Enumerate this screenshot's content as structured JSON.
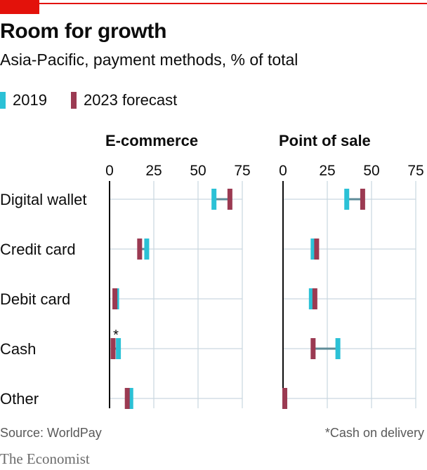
{
  "header": {
    "title": "Room for growth",
    "subtitle": "Asia-Pacific, payment methods, % of total"
  },
  "legend": [
    {
      "label": "2019",
      "color": "#2bc1d6"
    },
    {
      "label": "2023 forecast",
      "color": "#9b3a52"
    }
  ],
  "colors": {
    "connector": "#5f8c99",
    "grid": "#c9d7e0",
    "axis": "#0c0c0c",
    "brand_red": "#e3120b"
  },
  "chart_data": [
    {
      "type": "dumbbell",
      "title": "E-commerce",
      "xlim": [
        0,
        75
      ],
      "xticks": [
        0,
        25,
        50,
        75
      ],
      "categories": [
        "Digital wallet",
        "Credit card",
        "Debit card",
        "Cash",
        "Other"
      ],
      "series": [
        {
          "name": "2019",
          "values": [
            59,
            21,
            4,
            5,
            12
          ]
        },
        {
          "name": "2023 forecast",
          "values": [
            68,
            17,
            3,
            2,
            10
          ]
        }
      ],
      "annotations": [
        {
          "category": "Cash",
          "text": "*"
        }
      ]
    },
    {
      "type": "dumbbell",
      "title": "Point of sale",
      "xlim": [
        0,
        75
      ],
      "xticks": [
        0,
        25,
        50,
        75
      ],
      "categories": [
        "Digital wallet",
        "Credit card",
        "Debit card",
        "Cash",
        "Other"
      ],
      "series": [
        {
          "name": "2019",
          "values": [
            36,
            17,
            16,
            31,
            1
          ]
        },
        {
          "name": "2023 forecast",
          "values": [
            45,
            19,
            18,
            17,
            1
          ]
        }
      ]
    }
  ],
  "footer": {
    "source": "Source: WorldPay",
    "note": "*Cash on delivery",
    "brand": "The Economist"
  }
}
